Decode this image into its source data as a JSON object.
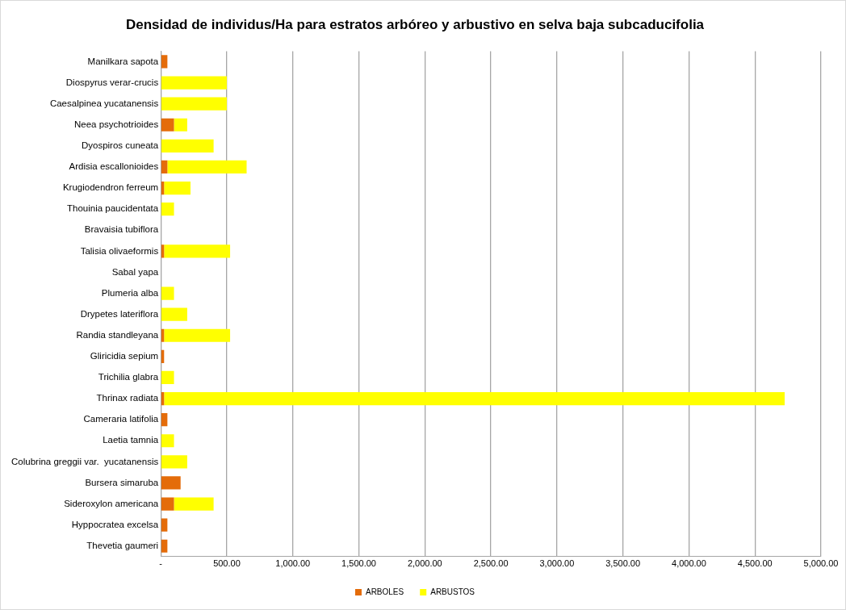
{
  "chart_data": {
    "type": "bar",
    "orientation": "horizontal",
    "stacked": true,
    "title": "Densidad de individus/Ha para estratos arbóreo y arbustivo en selva baja subcaducifolia",
    "categories": [
      "Manilkara sapota",
      "Diospyrus verar-crucis",
      "Caesalpinea yucatanensis",
      "Neea psychotrioides",
      "Dyospiros cuneata",
      "Ardisia escallonioides",
      "Krugiodendron ferreum",
      "Thouinia paucidentata",
      "Bravaisia tubiflora",
      "Talisia olivaeformis",
      "Sabal yapa",
      "Plumeria alba",
      "Drypetes lateriflora",
      "Randia standleyana",
      "Gliricidia sepium",
      "Trichilia glabra",
      "Thrinax radiata",
      "Cameraria latifolia",
      "Laetia tamnia",
      "Colubrina greggii var.  yucatanensis",
      "Bursera simaruba",
      "Sideroxylon americana",
      "Hyppocratea excelsa",
      "Thevetia gaumeri"
    ],
    "series": [
      {
        "name": "ARBOLES",
        "color": "#e46c0a",
        "values": [
          50,
          0,
          0,
          100,
          0,
          50,
          25,
          0,
          0,
          25,
          0,
          0,
          0,
          25,
          25,
          0,
          25,
          50,
          0,
          0,
          150,
          100,
          50,
          50
        ]
      },
      {
        "name": "ARBUSTOS",
        "color": "#ffff00",
        "values": [
          0,
          500,
          500,
          100,
          400,
          600,
          200,
          100,
          0,
          500,
          0,
          100,
          200,
          500,
          0,
          100,
          4700,
          0,
          100,
          200,
          0,
          300,
          0,
          0
        ]
      }
    ],
    "xlim": [
      0,
      5000
    ],
    "xticks": [
      {
        "value": 0,
        "label": "-"
      },
      {
        "value": 500,
        "label": "500.00"
      },
      {
        "value": 1000,
        "label": "1,000.00"
      },
      {
        "value": 1500,
        "label": "1,500.00"
      },
      {
        "value": 2000,
        "label": "2,000.00"
      },
      {
        "value": 2500,
        "label": "2,500.00"
      },
      {
        "value": 3000,
        "label": "3,000.00"
      },
      {
        "value": 3500,
        "label": "3,500.00"
      },
      {
        "value": 4000,
        "label": "4,000.00"
      },
      {
        "value": 4500,
        "label": "4,500.00"
      },
      {
        "value": 5000,
        "label": "5,000.00"
      }
    ],
    "grid": "x",
    "legend": "bottom"
  }
}
